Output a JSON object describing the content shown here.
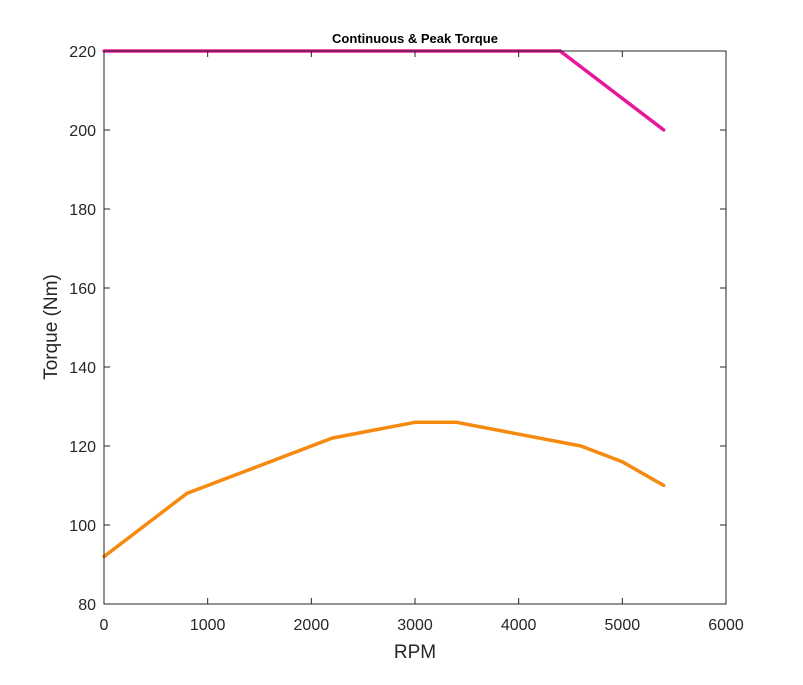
{
  "chart_data": {
    "type": "line",
    "title": "Continuous & Peak Torque",
    "xlabel": "RPM",
    "ylabel": "Torque (Nm)",
    "xlim": [
      0,
      6000
    ],
    "ylim": [
      80,
      220
    ],
    "xticks": [
      0,
      1000,
      2000,
      3000,
      4000,
      5000,
      6000
    ],
    "yticks": [
      80,
      100,
      120,
      140,
      160,
      180,
      200,
      220
    ],
    "xtick_labels": [
      "0",
      "1000",
      "2000",
      "3000",
      "4000",
      "5000",
      "6000"
    ],
    "ytick_labels": [
      "80",
      "100",
      "120",
      "140",
      "160",
      "180",
      "200",
      "220"
    ],
    "grid": false,
    "legend": "none",
    "series": [
      {
        "color": "#e8169b",
        "points": [
          [
            0,
            220
          ],
          [
            4400,
            220
          ],
          [
            5400,
            200
          ]
        ]
      },
      {
        "color": "#f58a0f",
        "points": [
          [
            0,
            92
          ],
          [
            800,
            108
          ],
          [
            2200,
            122
          ],
          [
            3000,
            126
          ],
          [
            3400,
            126
          ],
          [
            4600,
            120
          ],
          [
            5000,
            116
          ],
          [
            5400,
            110
          ]
        ]
      }
    ]
  }
}
